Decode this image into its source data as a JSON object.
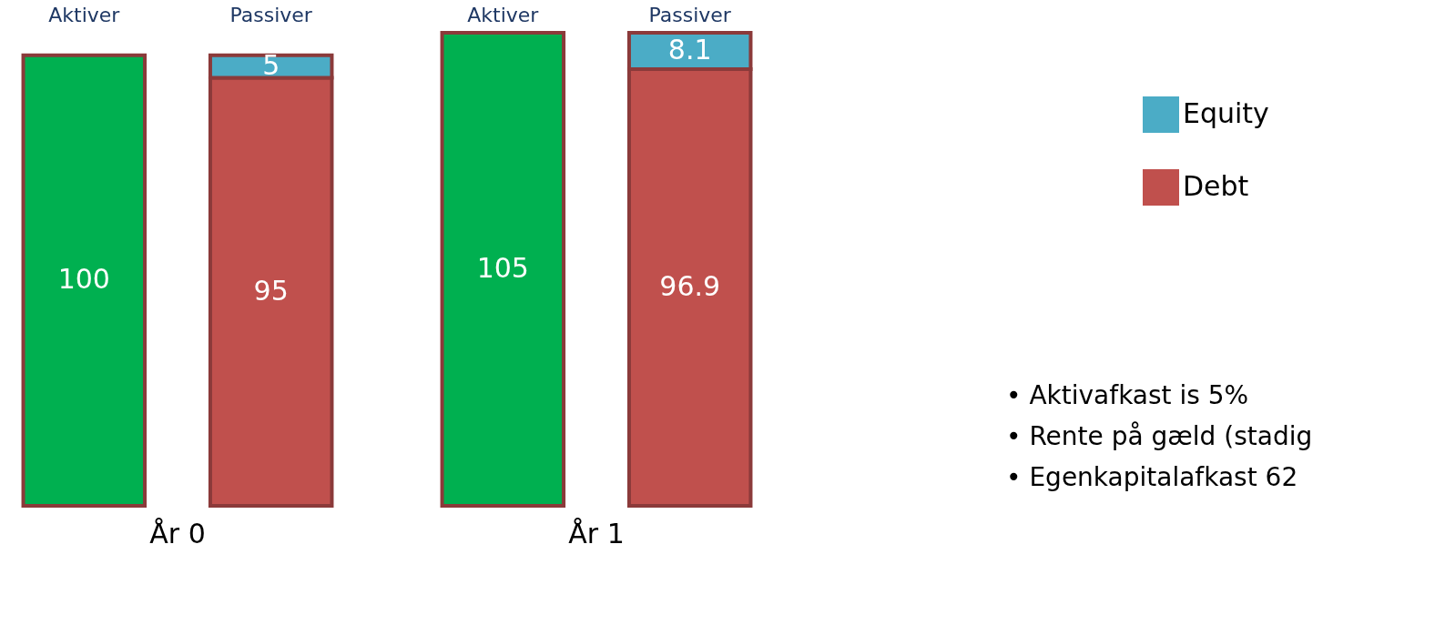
{
  "chart_data": [
    {
      "type": "bar",
      "stacked": true,
      "xlabel": "År 0",
      "categories": [
        "Aktiver",
        "Passiver"
      ],
      "data_labels": true,
      "legend": false,
      "series": [
        {
          "color": "#00b050",
          "values": [
            100,
            null
          ]
        },
        {
          "color": "#c0504d",
          "values": [
            null,
            95
          ]
        },
        {
          "color": "#4bacc6",
          "values": [
            null,
            5
          ]
        }
      ]
    },
    {
      "type": "bar",
      "stacked": true,
      "xlabel": "År 1",
      "categories": [
        "Aktiver",
        "Passiver"
      ],
      "data_labels": true,
      "legend": "right",
      "series": [
        {
          "color": "#00b050",
          "values": [
            105,
            null
          ]
        },
        {
          "name": "Debt",
          "color": "#c0504d",
          "values": [
            null,
            96.9
          ]
        },
        {
          "name": "Equity",
          "color": "#4bacc6",
          "values": [
            null,
            8.1
          ]
        }
      ],
      "annotations": [
        "•   Aktivafkast  is 5%",
        "•   Rente på gæld (stadig",
        "•   Egenkapitalafkast 62"
      ]
    }
  ]
}
